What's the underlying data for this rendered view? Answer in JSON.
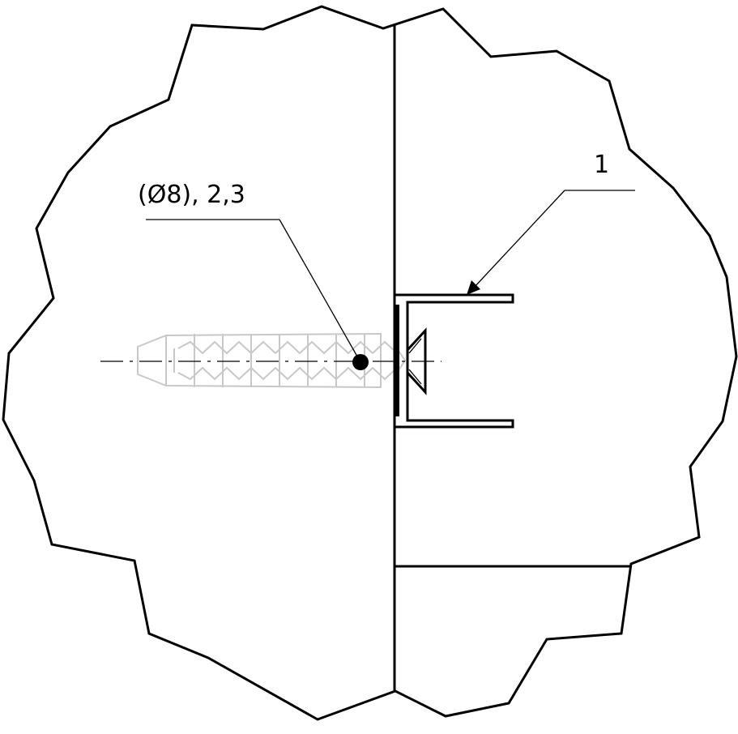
{
  "labels": {
    "anchor_callout": "(Ø8), 2,3",
    "profile_callout": "1"
  },
  "colors": {
    "line": "#000000",
    "ghost": "#c8c8c8",
    "background": "#ffffff"
  }
}
